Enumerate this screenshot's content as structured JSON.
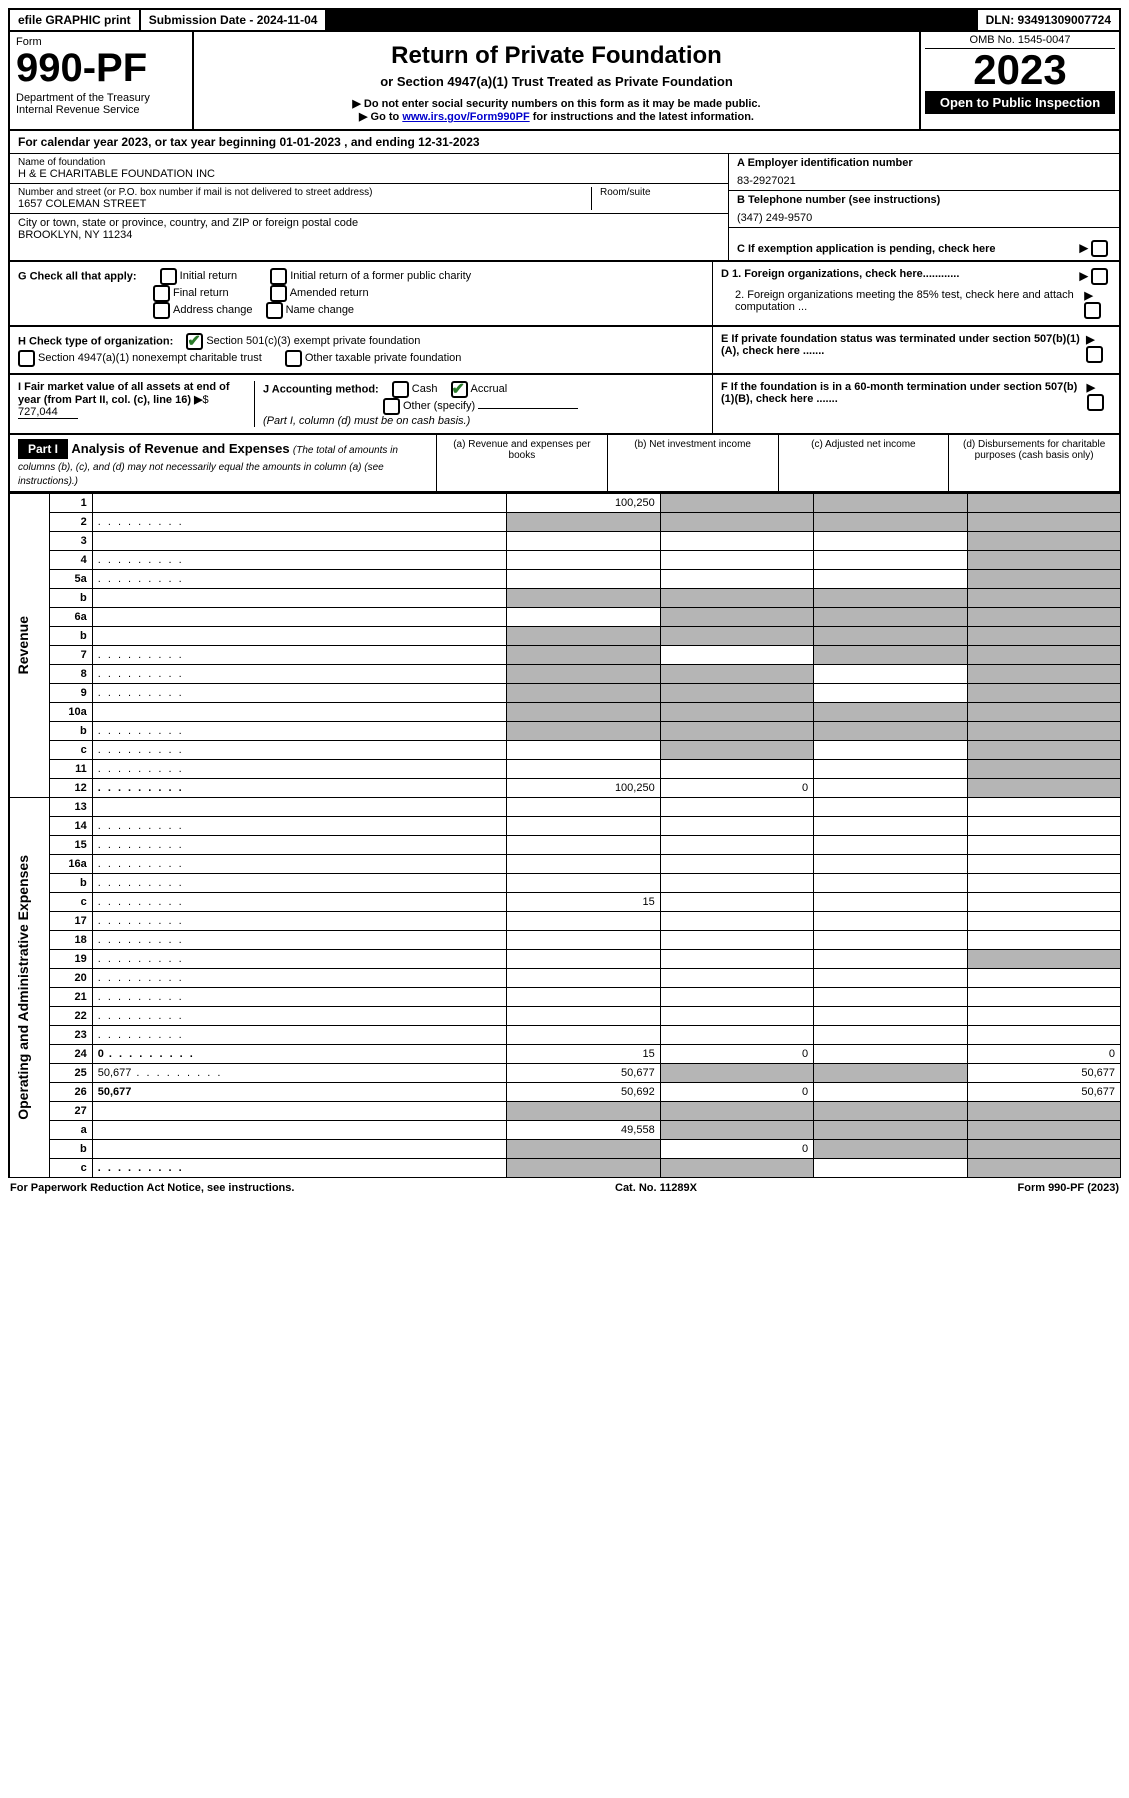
{
  "top": {
    "efile": "efile GRAPHIC print",
    "submission": "Submission Date - 2024-11-04",
    "dln": "DLN: 93491309007724"
  },
  "header": {
    "form_label": "Form",
    "form_number": "990-PF",
    "dept": "Department of the Treasury",
    "irs": "Internal Revenue Service",
    "title": "Return of Private Foundation",
    "subtitle": "or Section 4947(a)(1) Trust Treated as Private Foundation",
    "note1": "▶ Do not enter social security numbers on this form as it may be made public.",
    "note2_pre": "▶ Go to ",
    "note2_link": "www.irs.gov/Form990PF",
    "note2_post": " for instructions and the latest information.",
    "omb": "OMB No. 1545-0047",
    "year": "2023",
    "open": "Open to Public Inspection"
  },
  "calyear": "For calendar year 2023, or tax year beginning 01-01-2023                            , and ending 12-31-2023",
  "id": {
    "name_lbl": "Name of foundation",
    "name": "H & E CHARITABLE FOUNDATION INC",
    "addr_lbl": "Number and street (or P.O. box number if mail is not delivered to street address)",
    "addr": "1657 COLEMAN STREET",
    "room_lbl": "Room/suite",
    "city_lbl": "City or town, state or province, country, and ZIP or foreign postal code",
    "city": "BROOKLYN, NY  11234",
    "ein_lbl": "A Employer identification number",
    "ein": "83-2927021",
    "tel_lbl": "B Telephone number (see instructions)",
    "tel": "(347) 249-9570",
    "c_lbl": "C If exemption application is pending, check here"
  },
  "g": {
    "lbl": "G Check all that apply:",
    "opt1": "Initial return",
    "opt2": "Final return",
    "opt3": "Address change",
    "opt4": "Initial return of a former public charity",
    "opt5": "Amended return",
    "opt6": "Name change",
    "d1": "D 1. Foreign organizations, check here............",
    "d2": "2. Foreign organizations meeting the 85% test, check here and attach computation ...",
    "e": "E  If private foundation status was terminated under section 507(b)(1)(A), check here .......",
    "f": "F  If the foundation is in a 60-month termination under section 507(b)(1)(B), check here ......."
  },
  "h": {
    "lbl": "H Check type of organization:",
    "h1": "Section 501(c)(3) exempt private foundation",
    "h2": "Section 4947(a)(1) nonexempt charitable trust",
    "h3": "Other taxable private foundation"
  },
  "i": {
    "lbl": "I Fair market value of all assets at end of year (from Part II, col. (c), line 16)",
    "val": "727,044"
  },
  "j": {
    "lbl": "J Accounting method:",
    "cash": "Cash",
    "accrual": "Accrual",
    "other": "Other (specify)",
    "note": "(Part I, column (d) must be on cash basis.)"
  },
  "part1": {
    "hdr": "Part I",
    "title": "Analysis of Revenue and Expenses",
    "title_note": "(The total of amounts in columns (b), (c), and (d) may not necessarily equal the amounts in column (a) (see instructions).)",
    "col_a": "(a)   Revenue and expenses per books",
    "col_b": "(b)   Net investment income",
    "col_c": "(c)   Adjusted net income",
    "col_d": "(d)   Disbursements for charitable purposes (cash basis only)"
  },
  "sides": {
    "rev": "Revenue",
    "exp": "Operating and Administrative Expenses"
  },
  "rows": [
    {
      "n": "1",
      "d": "",
      "a": "100,250",
      "b": "",
      "c": "",
      "shade": [
        "b",
        "c",
        "d"
      ]
    },
    {
      "n": "2",
      "d": "",
      "a": "",
      "b": "",
      "c": "",
      "shade": [
        "a",
        "b",
        "c",
        "d"
      ],
      "dots": true
    },
    {
      "n": "3",
      "d": "",
      "a": "",
      "b": "",
      "c": "",
      "shade": [
        "d"
      ]
    },
    {
      "n": "4",
      "d": "",
      "a": "",
      "b": "",
      "c": "",
      "shade": [
        "d"
      ],
      "dots": true
    },
    {
      "n": "5a",
      "d": "",
      "a": "",
      "b": "",
      "c": "",
      "shade": [
        "d"
      ],
      "dots": true
    },
    {
      "n": "b",
      "d": "",
      "a": "",
      "b": "",
      "c": "",
      "shade": [
        "a",
        "b",
        "c",
        "d"
      ]
    },
    {
      "n": "6a",
      "d": "",
      "a": "",
      "b": "",
      "c": "",
      "shade": [
        "b",
        "c",
        "d"
      ]
    },
    {
      "n": "b",
      "d": "",
      "a": "",
      "b": "",
      "c": "",
      "shade": [
        "a",
        "b",
        "c",
        "d"
      ]
    },
    {
      "n": "7",
      "d": "",
      "a": "",
      "b": "",
      "c": "",
      "shade": [
        "a",
        "c",
        "d"
      ],
      "dots": true
    },
    {
      "n": "8",
      "d": "",
      "a": "",
      "b": "",
      "c": "",
      "shade": [
        "a",
        "b",
        "d"
      ],
      "dots": true
    },
    {
      "n": "9",
      "d": "",
      "a": "",
      "b": "",
      "c": "",
      "shade": [
        "a",
        "b",
        "d"
      ],
      "dots": true
    },
    {
      "n": "10a",
      "d": "",
      "a": "",
      "b": "",
      "c": "",
      "shade": [
        "a",
        "b",
        "c",
        "d"
      ]
    },
    {
      "n": "b",
      "d": "",
      "a": "",
      "b": "",
      "c": "",
      "shade": [
        "a",
        "b",
        "c",
        "d"
      ],
      "dots": true
    },
    {
      "n": "c",
      "d": "",
      "a": "",
      "b": "",
      "c": "",
      "shade": [
        "b",
        "d"
      ],
      "dots": true
    },
    {
      "n": "11",
      "d": "",
      "a": "",
      "b": "",
      "c": "",
      "shade": [
        "d"
      ],
      "dots": true
    },
    {
      "n": "12",
      "d": "",
      "a": "100,250",
      "b": "0",
      "c": "",
      "shade": [
        "d"
      ],
      "bold": true,
      "dots": true
    },
    {
      "n": "13",
      "d": "",
      "a": "",
      "b": "",
      "c": ""
    },
    {
      "n": "14",
      "d": "",
      "a": "",
      "b": "",
      "c": "",
      "dots": true
    },
    {
      "n": "15",
      "d": "",
      "a": "",
      "b": "",
      "c": "",
      "dots": true
    },
    {
      "n": "16a",
      "d": "",
      "a": "",
      "b": "",
      "c": "",
      "dots": true
    },
    {
      "n": "b",
      "d": "",
      "a": "",
      "b": "",
      "c": "",
      "dots": true
    },
    {
      "n": "c",
      "d": "",
      "a": "15",
      "b": "",
      "c": "",
      "dots": true
    },
    {
      "n": "17",
      "d": "",
      "a": "",
      "b": "",
      "c": "",
      "dots": true
    },
    {
      "n": "18",
      "d": "",
      "a": "",
      "b": "",
      "c": "",
      "dots": true
    },
    {
      "n": "19",
      "d": "",
      "a": "",
      "b": "",
      "c": "",
      "shade": [
        "d"
      ],
      "dots": true
    },
    {
      "n": "20",
      "d": "",
      "a": "",
      "b": "",
      "c": "",
      "dots": true
    },
    {
      "n": "21",
      "d": "",
      "a": "",
      "b": "",
      "c": "",
      "dots": true
    },
    {
      "n": "22",
      "d": "",
      "a": "",
      "b": "",
      "c": "",
      "dots": true
    },
    {
      "n": "23",
      "d": "",
      "a": "",
      "b": "",
      "c": "",
      "dots": true
    },
    {
      "n": "24",
      "d": "0",
      "a": "15",
      "b": "0",
      "c": "",
      "bold": true,
      "dots": true
    },
    {
      "n": "25",
      "d": "50,677",
      "a": "50,677",
      "b": "",
      "c": "",
      "shade": [
        "b",
        "c"
      ],
      "dots": true
    },
    {
      "n": "26",
      "d": "50,677",
      "a": "50,692",
      "b": "0",
      "c": "",
      "bold": true
    },
    {
      "n": "27",
      "d": "",
      "a": "",
      "b": "",
      "c": "",
      "shade": [
        "a",
        "b",
        "c",
        "d"
      ]
    },
    {
      "n": "a",
      "d": "",
      "a": "49,558",
      "b": "",
      "c": "",
      "shade": [
        "b",
        "c",
        "d"
      ],
      "bold": true
    },
    {
      "n": "b",
      "d": "",
      "a": "",
      "b": "0",
      "c": "",
      "shade": [
        "a",
        "c",
        "d"
      ],
      "bold": true
    },
    {
      "n": "c",
      "d": "",
      "a": "",
      "b": "",
      "c": "",
      "shade": [
        "a",
        "b",
        "d"
      ],
      "bold": true,
      "dots": true
    }
  ],
  "footer": {
    "left": "For Paperwork Reduction Act Notice, see instructions.",
    "mid": "Cat. No. 11289X",
    "right": "Form 990-PF (2023)"
  },
  "colors": {
    "shade": "#b5b5b5",
    "link": "#0000cc",
    "check": "#2a7a2a"
  }
}
